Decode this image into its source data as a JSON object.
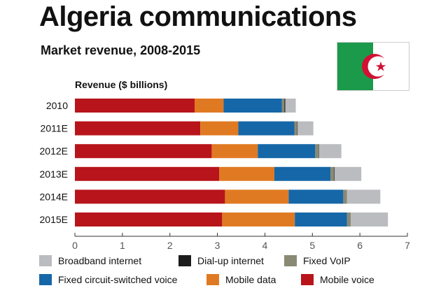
{
  "header": {
    "title": "Algeria communications",
    "subtitle": "Market revenue, 2008-2015"
  },
  "flag_icon": "algeria-flag-icon",
  "colors": {
    "Broadband internet": "#bbbcbf",
    "Dial-up internet": "#1c1c1c",
    "Fixed VoIP": "#8a8a74",
    "Fixed circuit-switched voice": "#1567a8",
    "Mobile data": "#e07a22",
    "Mobile voice": "#b8141b"
  },
  "chart_data": {
    "type": "bar",
    "orientation": "horizontal",
    "stacked": true,
    "ylabel": "Revenue ($ billions)",
    "xlim": [
      0,
      7
    ],
    "xticks": [
      "0",
      "1",
      "2",
      "3",
      "4",
      "5",
      "6",
      "7"
    ],
    "grid": false,
    "categories": [
      "2010",
      "2011E",
      "2012E",
      "2013E",
      "2014E",
      "2015E"
    ],
    "series": [
      {
        "name": "Mobile voice",
        "values": [
          2.52,
          2.64,
          2.88,
          3.04,
          3.16,
          3.1
        ]
      },
      {
        "name": "Mobile data",
        "values": [
          0.61,
          0.8,
          0.97,
          1.16,
          1.34,
          1.53
        ]
      },
      {
        "name": "Fixed circuit-switched voice",
        "values": [
          1.23,
          1.18,
          1.21,
          1.18,
          1.15,
          1.1
        ]
      },
      {
        "name": "Fixed VoIP",
        "values": [
          0.05,
          0.06,
          0.07,
          0.08,
          0.08,
          0.08
        ]
      },
      {
        "name": "Dial-up internet",
        "values": [
          0.02,
          0.01,
          0.01,
          0.01,
          0.0,
          0.0
        ]
      },
      {
        "name": "Broadband internet",
        "values": [
          0.22,
          0.33,
          0.47,
          0.56,
          0.7,
          0.78
        ]
      }
    ],
    "legend": {
      "placement": "bottom",
      "order": [
        "Broadband internet",
        "Dial-up internet",
        "Fixed VoIP",
        "Fixed circuit-switched voice",
        "Mobile data",
        "Mobile voice"
      ]
    }
  }
}
